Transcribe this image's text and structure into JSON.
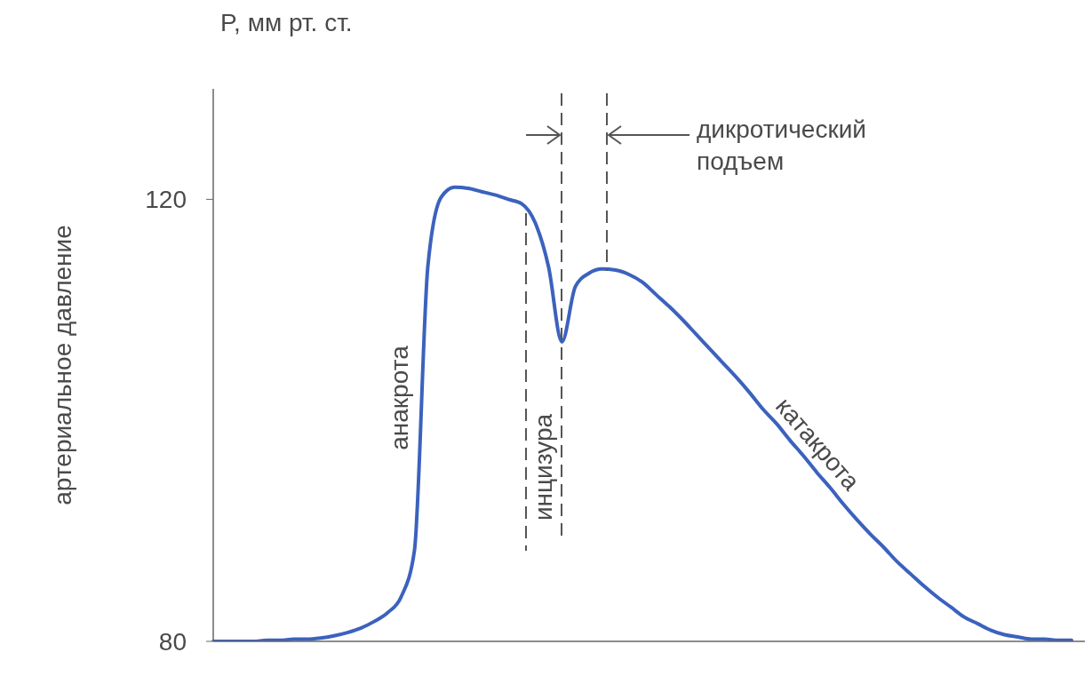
{
  "chart_data": {
    "type": "line",
    "ylabel": "артериальное давление",
    "annotations": [
      "P, мм рт. ст.",
      "дикротический подъем",
      "анакрота",
      "инцизура",
      "катакрота"
    ],
    "categories": [
      null,
      null,
      null,
      null,
      null,
      null,
      null,
      null,
      null,
      null,
      null,
      null,
      null,
      null,
      null,
      null,
      null,
      null,
      null,
      null,
      null,
      null,
      null,
      null,
      null,
      null,
      null,
      null,
      null,
      null,
      null,
      null,
      null,
      null,
      null,
      null,
      null,
      null,
      null,
      null,
      null,
      null,
      null,
      null,
      null,
      null,
      null,
      null,
      null,
      null,
      null,
      null,
      null,
      null,
      null,
      null,
      null,
      null,
      null,
      null,
      null,
      null,
      null,
      null,
      null
    ],
    "series": [
      {
        "color": "#3b62bd",
        "values": [
          80.0,
          80.0,
          80.0,
          80.0,
          80.1,
          80.1,
          80.2,
          80.2,
          80.3,
          80.5,
          80.8,
          81.2,
          81.8,
          82.6,
          84.0,
          88.2,
          113.9,
          120.2,
          121.1,
          121.0,
          120.7,
          120.4,
          120.0,
          119.6,
          117.9,
          113.9,
          107.1,
          112.1,
          113.3,
          113.7,
          113.6,
          113.2,
          112.5,
          111.4,
          110.3,
          109.1,
          107.8,
          106.5,
          105.2,
          103.9,
          102.5,
          101.0,
          99.7,
          98.2,
          96.8,
          95.3,
          93.9,
          92.4,
          91.0,
          89.7,
          88.5,
          87.2,
          86.1,
          85.0,
          84.0,
          83.1,
          82.2,
          81.6,
          81.0,
          80.6,
          80.4,
          80.2,
          80.2,
          80.1,
          80.1
        ]
      }
    ],
    "ylim": [
      80,
      130
    ],
    "yticks": [
      80,
      120
    ],
    "tick_labels": "y"
  }
}
